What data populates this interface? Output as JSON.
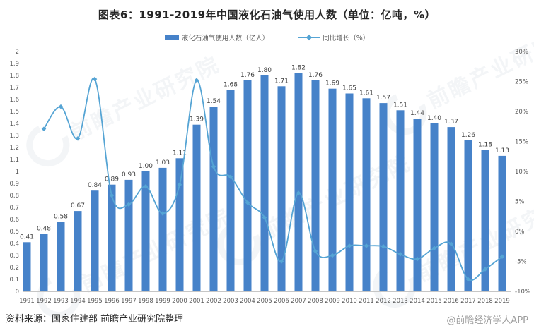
{
  "title": "图表6：1991-2019年中国液化石油气使用人数（单位：亿吨，%）",
  "legend": {
    "bar_label": "液化石油气使用人数（亿人）",
    "line_label": "同比增长（%）"
  },
  "footer": {
    "source": "资料来源：国家住建部 前瞻产业研究院整理",
    "credit": "@前瞻经济学人APP"
  },
  "watermark": {
    "text": "前瞻产业研究院"
  },
  "colors": {
    "bar": "#4682C9",
    "line": "#55A4D4",
    "axis_text": "#595959",
    "bar_label_text": "#404040",
    "baseline": "#C6C6C6",
    "watermark": "#8FA3B8"
  },
  "chart_data": {
    "type": "bar",
    "title": "图表6：1991-2019年中国液化石油气使用人数（单位：亿吨，%）",
    "categories": [
      "1991",
      "1992",
      "1993",
      "1994",
      "1995",
      "1996",
      "1997",
      "1998",
      "1999",
      "2000",
      "2001",
      "2002",
      "2003",
      "2004",
      "2005",
      "2006",
      "2007",
      "2008",
      "2009",
      "2010",
      "2011",
      "2012",
      "2013",
      "2014",
      "2015",
      "2016",
      "2017",
      "2018",
      "2019"
    ],
    "series": [
      {
        "name": "液化石油气使用人数（亿人）",
        "type": "bar",
        "axis": "left",
        "values": [
          0.41,
          0.48,
          0.58,
          0.67,
          0.84,
          0.89,
          0.93,
          1.0,
          1.03,
          1.11,
          1.39,
          1.54,
          1.68,
          1.76,
          1.8,
          1.71,
          1.82,
          1.76,
          1.69,
          1.65,
          1.61,
          1.57,
          1.51,
          1.44,
          1.4,
          1.37,
          1.26,
          1.18,
          1.13
        ],
        "labels": [
          "0.41",
          "0.48",
          "0.58",
          "0.67",
          "0.84",
          "0.89",
          "0.93",
          "1.00",
          "1.03",
          "1.11",
          "1.39",
          "1.54",
          "1.68",
          "1.76",
          "1.80",
          "1.71",
          "1.82",
          "1.76",
          "1.69",
          "1.65",
          "1.61",
          "1.57",
          "1.51",
          "1.44",
          "1.40",
          "1.37",
          "1.26",
          "1.18",
          "1.13"
        ]
      },
      {
        "name": "同比增长（%）",
        "type": "line",
        "axis": "right",
        "start_index": 1,
        "values": [
          17.1,
          20.8,
          15.5,
          25.4,
          6.0,
          4.5,
          7.5,
          3.0,
          7.8,
          25.2,
          10.8,
          9.1,
          4.8,
          2.3,
          -5.0,
          6.4,
          -3.3,
          -4.0,
          -2.4,
          -2.4,
          -2.5,
          -3.8,
          -4.6,
          -2.8,
          -2.1,
          -8.0,
          -6.3,
          -4.2
        ]
      }
    ],
    "left_axis": {
      "min": 0,
      "max": 2,
      "ticks": [
        "2",
        "1.9",
        "1.8",
        "1.7",
        "1.6",
        "1.5",
        "1.4",
        "1.3",
        "1.2",
        "1.1",
        "1",
        "0.9",
        "0.8",
        "0.7",
        "0.6",
        "0.5",
        "0.4",
        "0.3",
        "0.2",
        "0.1",
        "0"
      ]
    },
    "right_axis": {
      "min": -10,
      "max": 30,
      "ticks": [
        "30%",
        "25%",
        "20%",
        "15%",
        "10%",
        "5%",
        "0%",
        "-5%",
        "-10%"
      ]
    },
    "grid": false,
    "legend_position": "top-center"
  }
}
